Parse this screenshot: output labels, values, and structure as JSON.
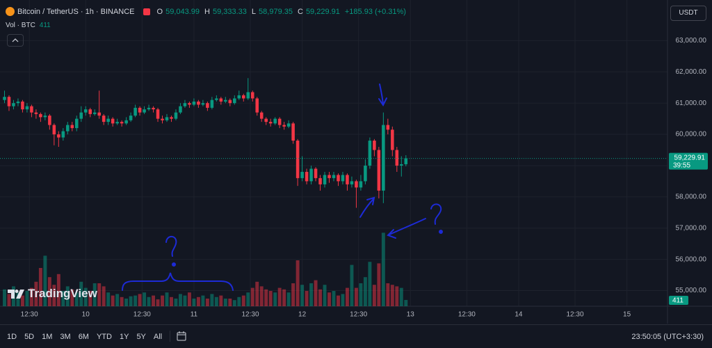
{
  "header": {
    "symbol": "Bitcoin / TetherUS · 1h · BINANCE",
    "ohlc": [
      {
        "key": "O",
        "value": "59,043.99"
      },
      {
        "key": "H",
        "value": "59,333.33"
      },
      {
        "key": "L",
        "value": "58,979.35"
      },
      {
        "key": "C",
        "value": "59,229.91"
      }
    ],
    "change": "+185.93 (+0.31%)",
    "volume_label": "Vol · BTC"
  },
  "currency": "USDT",
  "watermark": "TradingView",
  "toolbar": {
    "ranges": [
      "1D",
      "5D",
      "1M",
      "3M",
      "6M",
      "YTD",
      "1Y",
      "5Y",
      "All"
    ],
    "clock": "23:50:05 (UTC+3:30)"
  },
  "chart_data": {
    "type": "candlestick",
    "up_color": "#089981",
    "down_color": "#f23645",
    "ylim": [
      54500,
      64300
    ],
    "yticks": [
      {
        "value": 55000,
        "label": "55,000.00"
      },
      {
        "value": 56000,
        "label": "56,000.00"
      },
      {
        "value": 57000,
        "label": "57,000.00"
      },
      {
        "value": 58000,
        "label": "58,000.00"
      },
      {
        "value": 59000,
        "label": "59,000.00"
      },
      {
        "value": 60000,
        "label": "60,000.00"
      },
      {
        "value": 61000,
        "label": "61,000.00"
      },
      {
        "value": 62000,
        "label": "62,000.00"
      },
      {
        "value": 63000,
        "label": "63,000.00"
      }
    ],
    "xlim": [
      -1,
      147
    ],
    "xticks": [
      {
        "value": 5.5,
        "label": "12:30"
      },
      {
        "value": 18,
        "label": "10"
      },
      {
        "value": 30.5,
        "label": "12:30"
      },
      {
        "value": 42,
        "label": "11"
      },
      {
        "value": 54.5,
        "label": "12:30"
      },
      {
        "value": 66,
        "label": "12"
      },
      {
        "value": 78.5,
        "label": "12:30"
      },
      {
        "value": 90,
        "label": "13"
      },
      {
        "value": 102.5,
        "label": "12:30"
      },
      {
        "value": 114,
        "label": "14"
      },
      {
        "value": 126.5,
        "label": "12:30"
      },
      {
        "value": 138,
        "label": "15"
      }
    ],
    "volume_ylim": [
      0,
      20000
    ],
    "last_label": "59,229.91",
    "countdown": "39:55",
    "open": [
      61100,
      61200,
      60900,
      61000,
      61050,
      60800,
      60900,
      60700,
      60650,
      60550,
      60600,
      60300,
      60000,
      59900,
      60100,
      60300,
      60200,
      60500,
      60700,
      60800,
      60650,
      60700,
      60600,
      60400,
      60500,
      60350,
      60400,
      60350,
      60450,
      60600,
      60850,
      60700,
      60800,
      60850,
      60800,
      60500,
      60450,
      60550,
      60500,
      60700,
      60900,
      61000,
      60950,
      61050,
      60950,
      61000,
      60850,
      61100,
      61150,
      61050,
      61100,
      61000,
      61150,
      61250,
      61150,
      61350,
      61150,
      60700,
      60500,
      60400,
      60350,
      60500,
      60300,
      60250,
      60350,
      59800,
      58600,
      58800,
      58500,
      58900,
      58600,
      58400,
      58700,
      58600,
      58700,
      58500,
      58700,
      58400,
      58500,
      58300,
      58500,
      59000,
      59800,
      59500,
      58200,
      60300,
      60150,
      59500,
      59000,
      59043.99
    ],
    "high": [
      61400,
      61250,
      61100,
      61150,
      61100,
      61000,
      60950,
      60800,
      60700,
      60700,
      60650,
      60350,
      60100,
      60200,
      60400,
      60400,
      60600,
      60900,
      60900,
      60850,
      60800,
      61400,
      60650,
      60600,
      60550,
      60500,
      60450,
      60550,
      60700,
      60950,
      60900,
      60900,
      60950,
      60900,
      60850,
      60600,
      60650,
      60600,
      60800,
      61000,
      61100,
      61050,
      61150,
      61100,
      61100,
      61050,
      61200,
      61250,
      61200,
      61200,
      61150,
      61250,
      61400,
      61300,
      61800,
      61400,
      61200,
      60750,
      60550,
      60500,
      60550,
      60550,
      60400,
      60450,
      60400,
      59850,
      59300,
      58900,
      59000,
      58950,
      58700,
      58800,
      58800,
      58800,
      58750,
      58800,
      58750,
      58650,
      58550,
      58700,
      59200,
      59900,
      59850,
      59600,
      60700,
      60500,
      60250,
      59600,
      59300,
      59333.33
    ],
    "low": [
      61000,
      60750,
      60800,
      60900,
      60700,
      60700,
      60550,
      60500,
      60400,
      60450,
      60150,
      59650,
      59600,
      59800,
      60000,
      60100,
      60100,
      60400,
      60600,
      60550,
      60600,
      60500,
      60300,
      60300,
      60250,
      60300,
      60250,
      60300,
      60400,
      60550,
      60600,
      60650,
      60750,
      60700,
      60400,
      60350,
      60400,
      60400,
      60450,
      60650,
      60850,
      60850,
      60900,
      60850,
      60900,
      60750,
      60800,
      61050,
      60950,
      61000,
      60900,
      60950,
      61100,
      61050,
      61100,
      61050,
      60600,
      60400,
      60300,
      60250,
      60300,
      60200,
      60150,
      60200,
      59700,
      58350,
      58500,
      58400,
      58400,
      58500,
      58200,
      58300,
      58450,
      58500,
      58350,
      58400,
      58200,
      58300,
      57650,
      58200,
      58400,
      58900,
      59300,
      57950,
      57800,
      60000,
      59300,
      58800,
      58650,
      58979.35
    ],
    "close": [
      61200,
      60900,
      61000,
      61050,
      60800,
      60900,
      60700,
      60650,
      60550,
      60600,
      60300,
      60000,
      59900,
      60100,
      60300,
      60200,
      60500,
      60700,
      60800,
      60650,
      60700,
      60600,
      60400,
      60500,
      60350,
      60400,
      60350,
      60450,
      60600,
      60850,
      60700,
      60800,
      60850,
      60800,
      60500,
      60450,
      60550,
      60500,
      60700,
      60900,
      61000,
      60950,
      61050,
      60950,
      61000,
      60850,
      61100,
      61150,
      61050,
      61100,
      61000,
      61150,
      61250,
      61150,
      61350,
      61150,
      60700,
      60500,
      60400,
      60350,
      60500,
      60300,
      60250,
      60350,
      59800,
      58600,
      58800,
      58500,
      58900,
      58600,
      58400,
      58700,
      58600,
      58700,
      58500,
      58700,
      58400,
      58500,
      58300,
      58500,
      59000,
      59800,
      59500,
      58200,
      60300,
      60150,
      59500,
      59000,
      59043.98,
      59229.91
    ],
    "volume": [
      1100,
      800,
      1300,
      900,
      700,
      1000,
      1200,
      1600,
      2500,
      3300,
      1900,
      1400,
      2100,
      1000,
      1300,
      1100,
      900,
      1600,
      1200,
      1000,
      1500,
      1500,
      1300,
      900,
      700,
      800,
      600,
      500,
      650,
      700,
      800,
      900,
      600,
      700,
      450,
      700,
      900,
      600,
      500,
      800,
      700,
      900,
      500,
      600,
      700,
      500,
      800,
      600,
      700,
      500,
      500,
      400,
      600,
      700,
      900,
      1200,
      1600,
      1300,
      1100,
      1000,
      900,
      1200,
      1100,
      900,
      1500,
      3000,
      1400,
      1000,
      1500,
      1700,
      1100,
      1400,
      900,
      1000,
      700,
      800,
      1200,
      2700,
      1200,
      1500,
      1900,
      2900,
      1400,
      2800,
      4800,
      1500,
      1400,
      1300,
      1200,
      411
    ]
  }
}
